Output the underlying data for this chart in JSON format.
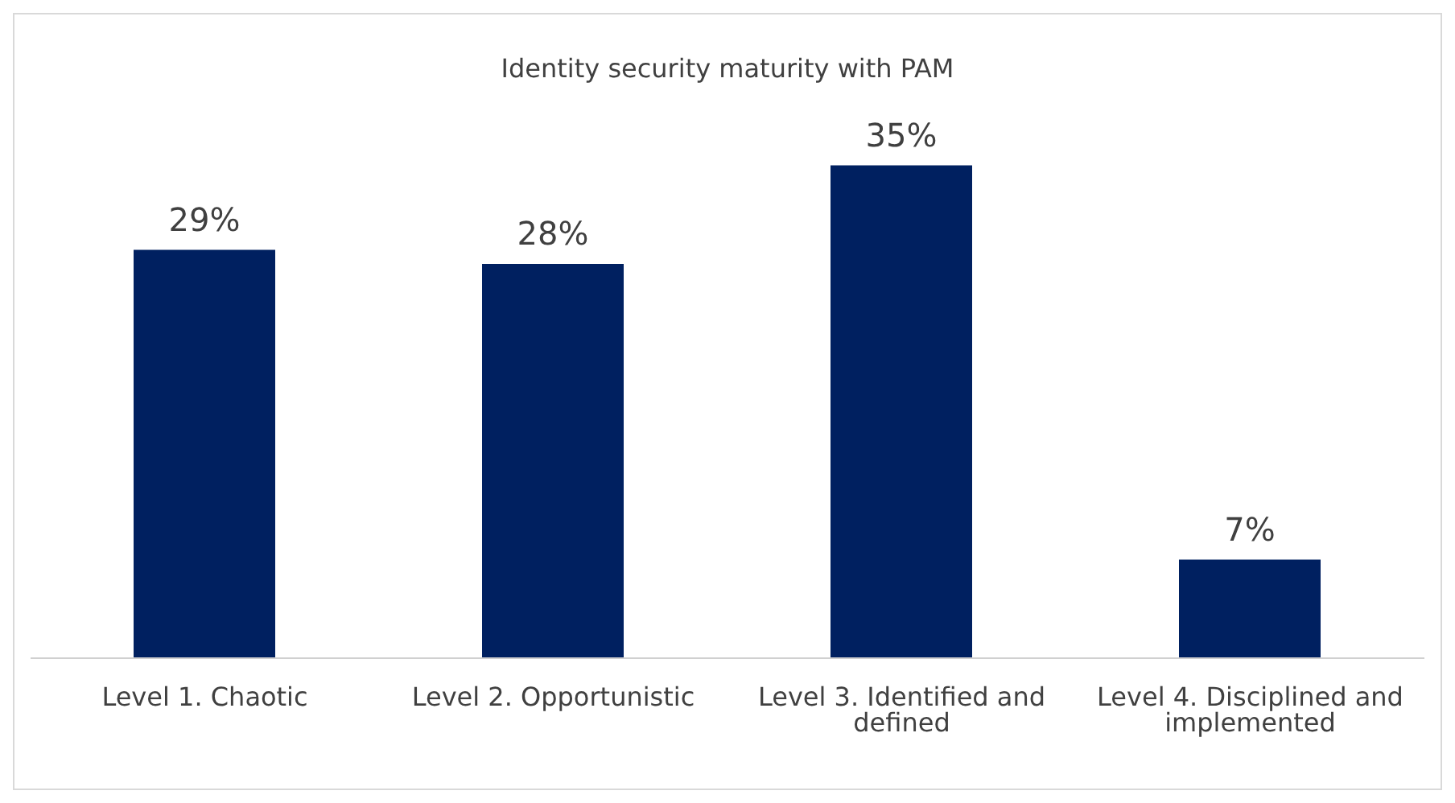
{
  "chart_data": {
    "type": "bar",
    "title": "Identity security maturity with PAM",
    "categories": [
      "Level 1. Chaotic",
      "Level 2. Opportunistic",
      "Level 3. Identified and defined",
      "Level 4. Disciplined and implemented"
    ],
    "values": [
      29,
      28,
      35,
      7
    ],
    "value_labels": [
      "29%",
      "28%",
      "35%",
      "7%"
    ],
    "color": "#002060"
  }
}
